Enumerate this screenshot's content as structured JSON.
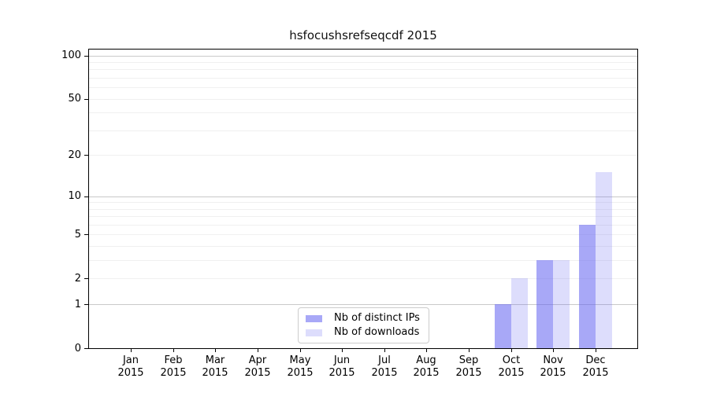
{
  "chart_data": {
    "type": "bar",
    "title": "hsfocushsrefseqcdf 2015",
    "months": [
      "Jan",
      "Feb",
      "Mar",
      "Apr",
      "May",
      "Jun",
      "Jul",
      "Aug",
      "Sep",
      "Oct",
      "Nov",
      "Dec"
    ],
    "year_label": "2015",
    "series": [
      {
        "name": "Nb of distinct IPs",
        "color": "rgba(100,100,240,0.56)",
        "values": [
          0,
          0,
          0,
          0,
          0,
          0,
          0,
          0,
          0,
          1,
          3,
          6
        ]
      },
      {
        "name": "Nb of downloads",
        "color": "rgba(100,100,240,0.22)",
        "values": [
          0,
          0,
          0,
          0,
          0,
          0,
          0,
          0,
          0,
          2,
          3,
          15
        ]
      }
    ],
    "yscale": "log1p",
    "ylim": [
      0,
      110
    ],
    "yticks": [
      0,
      1,
      2,
      5,
      10,
      20,
      50,
      100
    ],
    "major_gridlines": [
      1,
      10,
      100
    ],
    "minor_gridlines": [
      2,
      3,
      4,
      5,
      6,
      7,
      8,
      9,
      20,
      30,
      40,
      50,
      60,
      70,
      80,
      90
    ],
    "legend_position": "bottom-center-left",
    "grid": true
  },
  "colors": {
    "grid_major": "#c9c9c9",
    "grid_minor": "#f0f0f0",
    "axis": "#000000",
    "legend_border": "#cccccc",
    "bar_base": "#6464f0"
  }
}
